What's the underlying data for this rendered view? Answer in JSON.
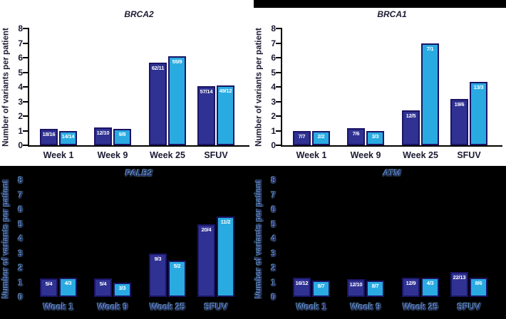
{
  "figure": {
    "y_axis_label": "Number of variants per patient",
    "categories": [
      "Week 1",
      "Week 9",
      "Week 25",
      "SFUV"
    ],
    "y_ticks": [
      "0",
      "1",
      "2",
      "3",
      "4",
      "5",
      "6",
      "7",
      "8"
    ],
    "ylim": [
      0,
      8
    ],
    "colors": {
      "series_dark_blue_fill": "#2f3292",
      "series_light_blue_fill": "#29abe2",
      "bar_border": "#1b1464",
      "bar_value_text": "#ffffff",
      "light_panel_bg": "#ffffff",
      "light_panel_text": "#1c1b33",
      "axis_color": "#000000",
      "dark_panel_bg": "#000000",
      "dark_panel_text": "#232a68",
      "dark_panel_halo": "#7dbeeb"
    }
  },
  "chart_data": [
    {
      "type": "bar",
      "title": "BRCA2",
      "panel_theme": "light",
      "ylabel": "Number of variants per patient",
      "xlabel": "",
      "ylim": [
        0,
        8
      ],
      "grid": false,
      "legend": "none",
      "categories": [
        "Week 1",
        "Week 9",
        "Week 25",
        "SFUV"
      ],
      "series": [
        {
          "name": "dark-blue-series",
          "color": "#2f3292",
          "bar_labels": [
            "18/16",
            "12/10",
            "62/11",
            "57/14"
          ],
          "values": [
            1.13,
            1.2,
            5.64,
            4.07
          ]
        },
        {
          "name": "light-blue-series",
          "color": "#29abe2",
          "bar_labels": [
            "14/14",
            "9/8",
            "55/9",
            "49/12"
          ],
          "values": [
            1.0,
            1.13,
            6.11,
            4.08
          ]
        }
      ]
    },
    {
      "type": "bar",
      "title": "BRCA1",
      "panel_theme": "light",
      "ylabel": "Number of variants per patient",
      "xlabel": "",
      "ylim": [
        0,
        8
      ],
      "grid": false,
      "legend": "none",
      "categories": [
        "Week 1",
        "Week 9",
        "Week 25",
        "SFUV"
      ],
      "series": [
        {
          "name": "dark-blue-series",
          "color": "#2f3292",
          "bar_labels": [
            "7/7",
            "7/6",
            "12/5",
            "19/6"
          ],
          "values": [
            1.0,
            1.17,
            2.4,
            3.17
          ]
        },
        {
          "name": "light-blue-series",
          "color": "#29abe2",
          "bar_labels": [
            "2/2",
            "3/3",
            "7/1",
            "13/3"
          ],
          "values": [
            1.0,
            1.0,
            7.0,
            4.33
          ]
        }
      ]
    },
    {
      "type": "bar",
      "title": "PALB2",
      "panel_theme": "dark",
      "ylabel": "Number of variants per patient",
      "xlabel": "",
      "ylim": [
        0,
        8
      ],
      "grid": false,
      "legend": "none",
      "categories": [
        "Week 1",
        "Week 9",
        "Week 25",
        "SFUV"
      ],
      "series": [
        {
          "name": "dark-blue-series",
          "color": "#2f3292",
          "bar_labels": [
            "5/4",
            "5/4",
            "9/3",
            "20/4"
          ],
          "values": [
            1.25,
            1.25,
            3.0,
            5.0
          ]
        },
        {
          "name": "light-blue-series",
          "color": "#29abe2",
          "bar_labels": [
            "4/3",
            "3/3",
            "5/2",
            "11/2"
          ],
          "values": [
            1.33,
            1.0,
            2.5,
            5.5
          ]
        }
      ]
    },
    {
      "type": "bar",
      "title": "ATM",
      "panel_theme": "dark",
      "ylabel": "Number of variants per patient",
      "xlabel": "",
      "ylim": [
        0,
        8
      ],
      "grid": false,
      "legend": "none",
      "categories": [
        "Week 1",
        "Week 9",
        "Week 25",
        "SFUV"
      ],
      "series": [
        {
          "name": "dark-blue-series",
          "color": "#2f3292",
          "bar_labels": [
            "16/12",
            "12/10",
            "12/9",
            "22/13"
          ],
          "values": [
            1.33,
            1.2,
            1.33,
            1.69
          ]
        },
        {
          "name": "light-blue-series",
          "color": "#29abe2",
          "bar_labels": [
            "8/7",
            "8/7",
            "4/3",
            "8/6"
          ],
          "values": [
            1.14,
            1.14,
            1.33,
            1.33
          ]
        }
      ]
    }
  ]
}
